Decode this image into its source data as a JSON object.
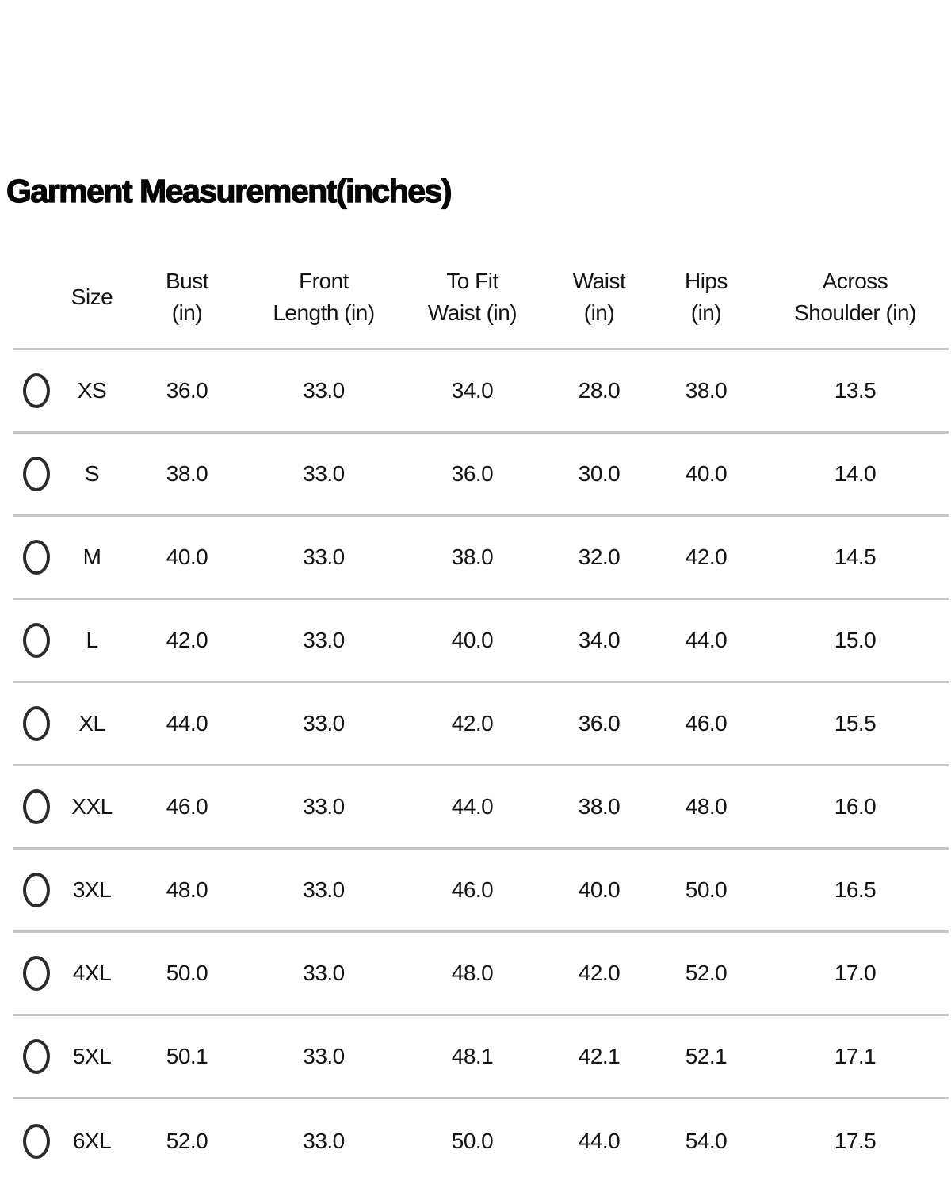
{
  "title": "Garment Measurement(inches)",
  "colors": {
    "text": "#141414",
    "divider": "#c6c6c6",
    "radio_border": "#2b2b2b",
    "background": "#ffffff"
  },
  "table": {
    "headers": [
      {
        "line1": "Size",
        "line2": ""
      },
      {
        "line1": "Bust",
        "line2": "(in)"
      },
      {
        "line1": "Front",
        "line2": "Length (in)"
      },
      {
        "line1": "To Fit",
        "line2": "Waist (in)"
      },
      {
        "line1": "Waist",
        "line2": "(in)"
      },
      {
        "line1": "Hips",
        "line2": "(in)"
      },
      {
        "line1": "Across",
        "line2": "Shoulder (in)"
      }
    ],
    "rows": [
      {
        "size": "XS",
        "bust": "36.0",
        "front_length": "33.0",
        "to_fit_waist": "34.0",
        "waist": "28.0",
        "hips": "38.0",
        "across_shoulder": "13.5",
        "selected": false
      },
      {
        "size": "S",
        "bust": "38.0",
        "front_length": "33.0",
        "to_fit_waist": "36.0",
        "waist": "30.0",
        "hips": "40.0",
        "across_shoulder": "14.0",
        "selected": false
      },
      {
        "size": "M",
        "bust": "40.0",
        "front_length": "33.0",
        "to_fit_waist": "38.0",
        "waist": "32.0",
        "hips": "42.0",
        "across_shoulder": "14.5",
        "selected": false
      },
      {
        "size": "L",
        "bust": "42.0",
        "front_length": "33.0",
        "to_fit_waist": "40.0",
        "waist": "34.0",
        "hips": "44.0",
        "across_shoulder": "15.0",
        "selected": false
      },
      {
        "size": "XL",
        "bust": "44.0",
        "front_length": "33.0",
        "to_fit_waist": "42.0",
        "waist": "36.0",
        "hips": "46.0",
        "across_shoulder": "15.5",
        "selected": false
      },
      {
        "size": "XXL",
        "bust": "46.0",
        "front_length": "33.0",
        "to_fit_waist": "44.0",
        "waist": "38.0",
        "hips": "48.0",
        "across_shoulder": "16.0",
        "selected": false
      },
      {
        "size": "3XL",
        "bust": "48.0",
        "front_length": "33.0",
        "to_fit_waist": "46.0",
        "waist": "40.0",
        "hips": "50.0",
        "across_shoulder": "16.5",
        "selected": false
      },
      {
        "size": "4XL",
        "bust": "50.0",
        "front_length": "33.0",
        "to_fit_waist": "48.0",
        "waist": "42.0",
        "hips": "52.0",
        "across_shoulder": "17.0",
        "selected": false
      },
      {
        "size": "5XL",
        "bust": "50.1",
        "front_length": "33.0",
        "to_fit_waist": "48.1",
        "waist": "42.1",
        "hips": "52.1",
        "across_shoulder": "17.1",
        "selected": false
      },
      {
        "size": "6XL",
        "bust": "52.0",
        "front_length": "33.0",
        "to_fit_waist": "50.0",
        "waist": "44.0",
        "hips": "54.0",
        "across_shoulder": "17.5",
        "selected": false
      }
    ]
  }
}
